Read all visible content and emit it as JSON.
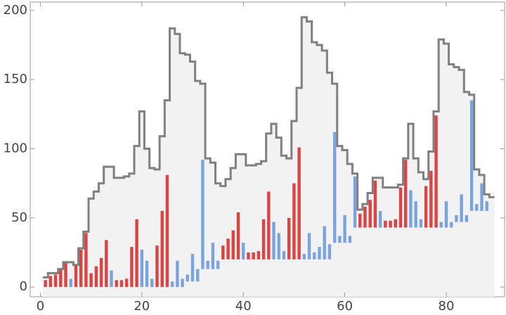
{
  "chart_data": {
    "type": "bar",
    "x": [
      1,
      2,
      3,
      4,
      5,
      6,
      7,
      8,
      9,
      10,
      11,
      12,
      13,
      14,
      15,
      16,
      17,
      18,
      19,
      20,
      21,
      22,
      23,
      24,
      25,
      26,
      27,
      28,
      29,
      30,
      31,
      32,
      33,
      34,
      35,
      36,
      37,
      38,
      39,
      40,
      41,
      42,
      43,
      44,
      45,
      46,
      47,
      48,
      49,
      50,
      51,
      52,
      53,
      54,
      55,
      56,
      57,
      58,
      59,
      60,
      61,
      62,
      63,
      64,
      65,
      66,
      67,
      68,
      69,
      70,
      71,
      72,
      73,
      74,
      75,
      76,
      77,
      78,
      79,
      80,
      81,
      82,
      83,
      84,
      85,
      86,
      87,
      88,
      89
    ],
    "step_values": [
      7,
      10,
      10,
      13,
      18,
      18,
      16,
      28,
      40,
      64,
      69,
      75,
      87,
      87,
      79,
      79,
      80,
      82,
      102,
      127,
      100,
      86,
      85,
      109,
      135,
      187,
      183,
      169,
      168,
      163,
      149,
      147,
      93,
      90,
      75,
      73,
      78,
      86,
      96,
      96,
      88,
      88,
      89,
      91,
      111,
      118,
      108,
      95,
      93,
      120,
      144,
      195,
      192,
      177,
      175,
      171,
      155,
      147,
      102,
      99,
      89,
      82,
      56,
      60,
      68,
      79,
      79,
      72,
      72,
      72,
      74,
      93,
      118,
      93,
      83,
      78,
      98,
      127,
      179,
      176,
      161,
      159,
      157,
      141,
      139,
      85,
      81,
      67,
      65
    ],
    "step_color": "#808080",
    "area_color": "#f2f2f2",
    "bar_x": [
      1,
      2,
      3,
      4,
      5,
      6,
      7,
      8,
      9,
      10,
      11,
      12,
      13,
      14,
      15,
      16,
      17,
      18,
      19,
      20,
      21,
      22,
      23,
      24,
      25,
      26,
      27,
      28,
      29,
      30,
      31,
      32,
      33,
      34,
      35,
      36,
      37,
      38,
      39,
      40,
      41,
      42,
      43,
      44,
      45,
      46,
      47,
      48,
      49,
      50,
      51,
      52,
      53,
      54,
      55,
      56,
      57,
      58,
      59,
      60,
      61,
      62,
      63,
      64,
      65,
      66,
      67,
      68,
      69,
      70,
      71,
      72,
      73,
      74,
      75,
      76,
      77,
      78,
      79,
      80,
      81,
      82,
      83,
      84,
      85,
      86,
      87,
      88
    ],
    "bar_low": [
      0,
      0,
      0,
      0,
      0,
      0,
      0,
      0,
      0,
      0,
      0,
      0,
      0,
      0,
      0,
      0,
      0,
      0,
      0,
      0,
      0,
      0,
      0,
      0,
      0,
      0,
      0,
      0,
      4,
      4,
      4,
      13,
      13,
      13,
      13,
      20,
      20,
      20,
      20,
      20,
      20,
      20,
      20,
      20,
      20,
      20,
      20,
      20,
      20,
      20,
      20,
      20,
      20,
      20,
      20,
      20,
      20,
      32,
      32,
      32,
      32,
      43,
      43,
      43,
      43,
      43,
      43,
      43,
      43,
      43,
      43,
      43,
      43,
      43,
      43,
      43,
      43,
      43,
      43,
      43,
      43,
      47,
      47,
      47,
      55,
      55,
      55,
      55
    ],
    "bar_high": [
      5,
      8,
      9,
      13,
      18,
      6,
      16,
      27,
      39,
      10,
      15,
      21,
      34,
      12,
      5,
      5,
      6,
      29,
      49,
      27,
      19,
      6,
      30,
      55,
      81,
      4,
      19,
      6,
      9,
      24,
      13,
      92,
      19,
      32,
      19,
      30,
      35,
      41,
      54,
      32,
      25,
      25,
      26,
      49,
      69,
      47,
      39,
      26,
      50,
      75,
      101,
      24,
      39,
      25,
      29,
      44,
      31,
      112,
      37,
      52,
      37,
      80,
      53,
      58,
      63,
      77,
      55,
      48,
      48,
      49,
      72,
      92,
      70,
      62,
      49,
      73,
      84,
      124,
      47,
      62,
      47,
      52,
      67,
      52,
      135,
      60,
      75,
      62
    ],
    "bar_colors": [
      "#dc4343",
      "#dc4343",
      "#dc4343",
      "#dc4343",
      "#dc4343",
      "#7ba3de",
      "#dc4343",
      "#dc4343",
      "#dc4343",
      "#dc4343",
      "#dc4343",
      "#dc4343",
      "#dc4343",
      "#7ba3de",
      "#dc4343",
      "#dc4343",
      "#dc4343",
      "#dc4343",
      "#dc4343",
      "#7ba3de",
      "#7ba3de",
      "#7ba3de",
      "#dc4343",
      "#dc4343",
      "#dc4343",
      "#7ba3de",
      "#7ba3de",
      "#7ba3de",
      "#7ba3de",
      "#7ba3de",
      "#7ba3de",
      "#7ba3de",
      "#7ba3de",
      "#7ba3de",
      "#7ba3de",
      "#dc4343",
      "#dc4343",
      "#dc4343",
      "#dc4343",
      "#7ba3de",
      "#dc4343",
      "#dc4343",
      "#dc4343",
      "#dc4343",
      "#dc4343",
      "#7ba3de",
      "#7ba3de",
      "#7ba3de",
      "#dc4343",
      "#dc4343",
      "#dc4343",
      "#7ba3de",
      "#7ba3de",
      "#7ba3de",
      "#7ba3de",
      "#7ba3de",
      "#7ba3de",
      "#7ba3de",
      "#7ba3de",
      "#7ba3de",
      "#7ba3de",
      "#7ba3de",
      "#dc4343",
      "#dc4343",
      "#dc4343",
      "#dc4343",
      "#7ba3de",
      "#dc4343",
      "#dc4343",
      "#dc4343",
      "#dc4343",
      "#dc4343",
      "#7ba3de",
      "#7ba3de",
      "#7ba3de",
      "#dc4343",
      "#dc4343",
      "#dc4343",
      "#7ba3de",
      "#7ba3de",
      "#7ba3de",
      "#7ba3de",
      "#7ba3de",
      "#7ba3de",
      "#7ba3de",
      "#7ba3de",
      "#7ba3de",
      "#7ba3de"
    ],
    "xlim": [
      -2,
      91.5
    ],
    "ylim": [
      -7,
      206
    ],
    "xticks": [
      0,
      20,
      40,
      60,
      80
    ],
    "yticks": [
      0,
      50,
      100,
      150,
      200
    ]
  }
}
